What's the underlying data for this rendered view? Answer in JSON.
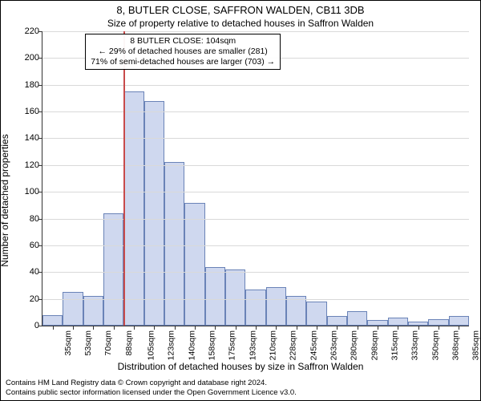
{
  "title": "8, BUTLER CLOSE, SAFFRON WALDEN, CB11 3DB",
  "subtitle": "Size of property relative to detached houses in Saffron Walden",
  "yaxis_label": "Number of detached properties",
  "xaxis_label": "Distribution of detached houses by size in Saffron Walden",
  "colors": {
    "bar_fill": "#cfd8ef",
    "bar_border": "#6a83b7",
    "reference_line": "#c84b4b",
    "grid": "#d9d9d9",
    "axis": "#333333",
    "background": "#ffffff"
  },
  "chart": {
    "type": "histogram",
    "y": {
      "min": 0,
      "max": 220,
      "tick_step": 20
    },
    "x_labels": [
      "35sqm",
      "53sqm",
      "70sqm",
      "88sqm",
      "105sqm",
      "123sqm",
      "140sqm",
      "158sqm",
      "175sqm",
      "193sqm",
      "210sqm",
      "228sqm",
      "245sqm",
      "263sqm",
      "280sqm",
      "298sqm",
      "315sqm",
      "333sqm",
      "350sqm",
      "368sqm",
      "385sqm"
    ],
    "values": [
      8,
      25,
      22,
      84,
      175,
      168,
      122,
      92,
      44,
      42,
      27,
      29,
      22,
      18,
      7,
      11,
      4,
      6,
      3,
      5,
      7
    ],
    "reference_bin_index": 4
  },
  "annotation": {
    "line1": "8 BUTLER CLOSE: 104sqm",
    "line2": "← 29% of detached houses are smaller (281)",
    "line3": "71% of semi-detached houses are larger (703) →"
  },
  "footer": {
    "line1": "Contains HM Land Registry data © Crown copyright and database right 2024.",
    "line2": "Contains public sector information licensed under the Open Government Licence v3.0."
  }
}
